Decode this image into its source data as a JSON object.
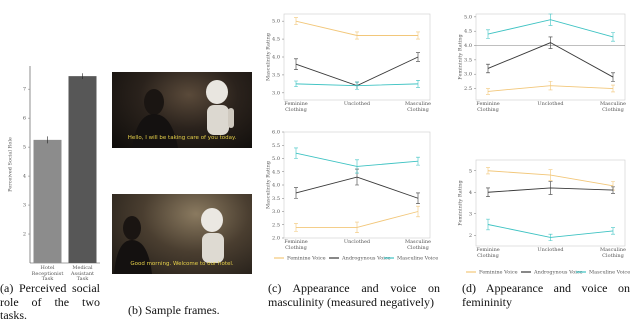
{
  "chart_data": [
    {
      "type": "bar",
      "y_label": "Perceived Social Role",
      "categories": [
        "Hotel Receptionist Task",
        "Medical Assistant Task"
      ],
      "values": [
        5.25,
        7.45
      ],
      "errors": [
        0.12,
        0.1
      ],
      "colors": [
        "#8c8c8c",
        "#575757"
      ],
      "ylim": [
        1,
        7.8
      ],
      "yticks": [
        2,
        3,
        4,
        5,
        6,
        7
      ]
    },
    {
      "type": "line",
      "y_label": "Masculinity Rating",
      "categories": [
        "Feminine Clothing",
        "Unclothed",
        "Masculine Clothing"
      ],
      "series": [
        {
          "color": "#f2c77a",
          "values": [
            5.0,
            4.6,
            4.6
          ],
          "errors": [
            0.1,
            0.1,
            0.1
          ]
        },
        {
          "color": "#3a3a3a",
          "values": [
            3.8,
            3.2,
            4.0
          ],
          "errors": [
            0.15,
            0.1,
            0.12
          ]
        },
        {
          "color": "#3fc3c3",
          "values": [
            3.25,
            3.2,
            3.25
          ],
          "errors": [
            0.08,
            0.1,
            0.1
          ]
        }
      ],
      "ylim": [
        2.8,
        5.2
      ],
      "yticks": [
        {
          "value": 3,
          "label": "3.0"
        },
        3.5,
        {
          "value": 4,
          "label": "4.0"
        },
        4.5,
        {
          "value": 5,
          "label": "5.0"
        }
      ]
    },
    {
      "type": "line",
      "y_label": "Masculinity Rating",
      "categories": [
        "Feminine Clothing",
        "Unclothed",
        "Masculine Clothing"
      ],
      "series": [
        {
          "name": "Feminine Voice",
          "color": "#f2c77a",
          "values": [
            2.4,
            2.4,
            3.0
          ],
          "errors": [
            0.15,
            0.2,
            0.2
          ]
        },
        {
          "name": "Androgynous Voice",
          "color": "#3a3a3a",
          "values": [
            3.7,
            4.3,
            3.5
          ],
          "errors": [
            0.2,
            0.3,
            0.2
          ]
        },
        {
          "name": "Masculine Voice",
          "color": "#3fc3c3",
          "values": [
            5.2,
            4.7,
            4.9
          ],
          "errors": [
            0.2,
            0.25,
            0.15
          ]
        }
      ],
      "ylim": [
        2.0,
        6.0
      ],
      "yticks": [
        {
          "value": 2,
          "label": "2.0"
        },
        2.5,
        {
          "value": 3,
          "label": "3.0"
        },
        3.5,
        {
          "value": 4,
          "label": "4.0"
        },
        4.5,
        {
          "value": 5,
          "label": "5.0"
        },
        5.5,
        {
          "value": 6,
          "label": "6.0"
        }
      ]
    },
    {
      "type": "line",
      "y_label": "Femininity Rating",
      "categories": [
        "Feminine Clothing",
        "Unclothed",
        "Masculine Clothing"
      ],
      "hline": 4.0,
      "series": [
        {
          "color": "#3fc3c3",
          "values": [
            4.4,
            4.9,
            4.3
          ],
          "errors": [
            0.15,
            0.2,
            0.15
          ]
        },
        {
          "color": "#3a3a3a",
          "values": [
            3.2,
            4.1,
            2.9
          ],
          "errors": [
            0.15,
            0.2,
            0.15
          ]
        },
        {
          "color": "#f2c77a",
          "values": [
            2.4,
            2.6,
            2.5
          ],
          "errors": [
            0.1,
            0.15,
            0.12
          ]
        }
      ],
      "ylim": [
        2.1,
        5.1
      ],
      "yticks": [
        2.5,
        {
          "value": 3,
          "label": "3.0"
        },
        3.5,
        {
          "value": 4,
          "label": "4.0"
        },
        4.5,
        {
          "value": 5,
          "label": "5.0"
        }
      ]
    },
    {
      "type": "line",
      "y_label": "Femininity Rating",
      "categories": [
        "Feminine Clothing",
        "Unclothed",
        "Masculine Clothing"
      ],
      "series": [
        {
          "name": "Feminine Voice",
          "color": "#f2c77a",
          "values": [
            5.0,
            4.8,
            4.3
          ],
          "errors": [
            0.15,
            0.25,
            0.2
          ]
        },
        {
          "name": "Androgynous Voice",
          "color": "#3a3a3a",
          "values": [
            4.0,
            4.2,
            4.1
          ],
          "errors": [
            0.2,
            0.3,
            0.15
          ]
        },
        {
          "name": "Masculine Voice",
          "color": "#3fc3c3",
          "values": [
            2.5,
            1.9,
            2.2
          ],
          "errors": [
            0.25,
            0.15,
            0.15
          ]
        }
      ],
      "ylim": [
        1.5,
        5.5
      ],
      "yticks": [
        2,
        3,
        4,
        5
      ]
    }
  ],
  "frames": [
    {
      "subtitle": "Hello, I will be taking care of you today."
    },
    {
      "subtitle": "Good morning. Welcome to our hotel."
    }
  ],
  "captions": [
    "(a) Perceived social role of the two tasks.",
    "(b) Sample frames.",
    "(c) Appearance and voice on masculinity (measured negatively)",
    "(d) Appearance and voice on femininity"
  ]
}
